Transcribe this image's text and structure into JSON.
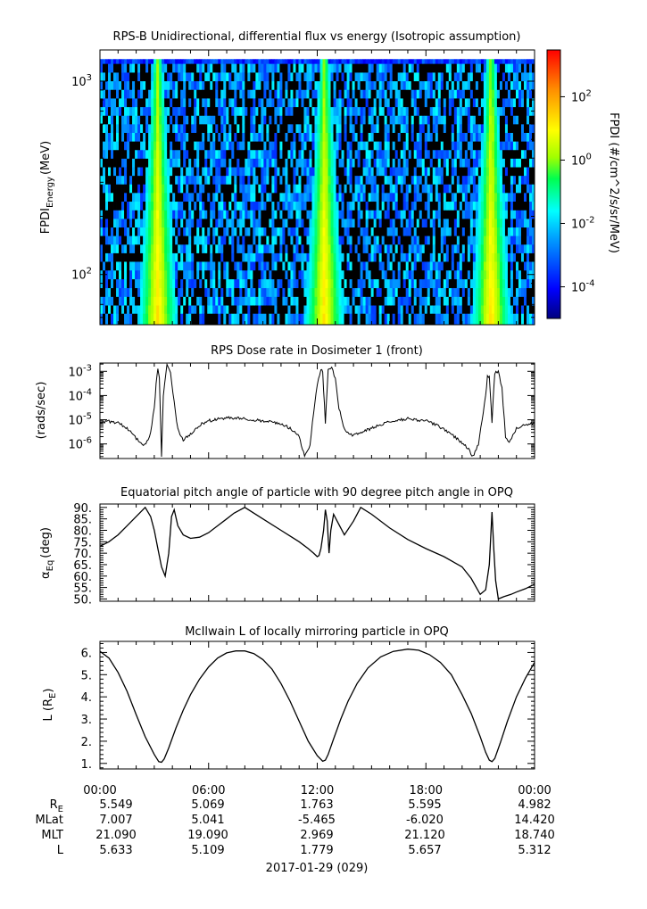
{
  "chart_data": [
    {
      "type": "heatmap",
      "title": "RPS-B  Unidirectional, differential flux vs energy (Isotropic assumption)",
      "ylabel_main": "FPDI",
      "ylabel_sub": "Energy",
      "ylabel_unit": "(MeV)",
      "y_scale": "log",
      "ylim": [
        55,
        1450
      ],
      "y_tick_labels": [
        {
          "value": 1000,
          "base": "10",
          "exp": "3"
        },
        {
          "value": 100,
          "base": "10",
          "exp": "2"
        }
      ],
      "energy_bins": [
        60,
        66,
        73,
        81,
        90,
        100,
        111,
        123,
        136,
        151,
        167,
        185,
        205,
        227,
        252,
        279,
        309,
        342,
        379,
        420,
        465,
        515,
        571,
        632,
        700,
        776,
        860,
        953,
        1056,
        1170,
        1300
      ],
      "colorbar": {
        "label": "FPDI (#/cm^2/s/sr/MeV)",
        "scale": "log",
        "range": [
          1e-05,
          3000
        ],
        "tick_labels": [
          {
            "value": 100,
            "base": "10",
            "exp": "2"
          },
          {
            "value": 1,
            "base": "10",
            "exp": "0"
          },
          {
            "value": 0.01,
            "base": "10",
            "exp": "-2"
          },
          {
            "value": 0.0001,
            "base": "10",
            "exp": "-4"
          }
        ]
      },
      "peaks_hours": [
        3.2,
        12.4,
        21.6
      ]
    },
    {
      "type": "line",
      "title": "RPS  Dose rate in Dosimeter 1 (front)",
      "ylabel": "(rads/sec)",
      "y_scale": "log",
      "ylim": [
        2.5e-07,
        0.0022
      ],
      "y_tick_labels": [
        {
          "value": 0.001,
          "base": "10",
          "exp": "-3"
        },
        {
          "value": 0.0001,
          "base": "10",
          "exp": "-4"
        },
        {
          "value": 1e-05,
          "base": "10",
          "exp": "-5"
        },
        {
          "value": 1e-06,
          "base": "10",
          "exp": "-6"
        }
      ],
      "x": [
        0,
        0.5,
        1,
        1.5,
        2,
        2.2,
        2.4,
        2.6,
        2.8,
        3.0,
        3.1,
        3.2,
        3.28,
        3.4,
        3.5,
        3.7,
        3.9,
        4.1,
        4.3,
        4.6,
        5,
        5.5,
        6,
        7,
        8,
        9,
        10,
        10.5,
        11,
        11.3,
        11.6,
        11.8,
        12.0,
        12.2,
        12.3,
        12.45,
        12.6,
        12.8,
        13.0,
        13.2,
        13.5,
        14,
        15,
        16,
        17,
        18,
        18.5,
        19,
        19.5,
        20,
        20.3,
        20.6,
        20.9,
        21.1,
        21.3,
        21.4,
        21.5,
        21.65,
        21.8,
        22.0,
        22.2,
        22.4,
        22.6,
        22.8,
        23,
        23.5,
        24
      ],
      "y": [
        7e-06,
        8.5e-06,
        7.5e-06,
        4.5e-06,
        1.7e-06,
        1.2e-06,
        9e-07,
        1.2e-06,
        3e-06,
        3e-05,
        0.0003,
        0.0012,
        0.0006,
        3e-07,
        0.0001,
        0.0018,
        0.0008,
        5e-05,
        4e-06,
        1.5e-06,
        2.5e-06,
        6e-06,
        9e-06,
        1.2e-05,
        1.1e-05,
        9e-06,
        7e-06,
        4.5e-06,
        2e-06,
        3e-07,
        9e-07,
        2e-05,
        0.0003,
        0.0013,
        0.0009,
        8e-06,
        0.0011,
        0.0015,
        0.0005,
        3e-05,
        4e-06,
        2.2e-06,
        4.5e-06,
        8.5e-06,
        1.1e-05,
        9e-06,
        6.5e-06,
        4e-06,
        2.2e-06,
        1.1e-06,
        7e-07,
        3e-07,
        1e-06,
        1e-05,
        0.0001,
        0.0006,
        0.0007,
        8e-06,
        0.0008,
        0.0011,
        0.0002,
        2e-06,
        1.2e-06,
        2.2e-06,
        4.5e-06,
        6.5e-06,
        7.5e-06
      ]
    },
    {
      "type": "line",
      "title": "Equatorial pitch angle of particle with 90 degree pitch angle in OPQ",
      "ylabel_main": "α",
      "ylabel_sub": "Eq",
      "ylabel_unit": "(deg)",
      "ylim": [
        49,
        91.5
      ],
      "y_ticks": [
        50,
        55,
        60,
        65,
        70,
        75,
        80,
        85,
        90
      ],
      "y_tick_labels": [
        "50.",
        "55.",
        "60.",
        "65.",
        "70.",
        "75.",
        "80.",
        "85.",
        "90."
      ],
      "x": [
        0,
        0.5,
        1,
        1.5,
        2.0,
        2.5,
        2.8,
        3.0,
        3.2,
        3.4,
        3.6,
        3.8,
        3.95,
        4.1,
        4.3,
        4.6,
        5,
        5.5,
        6,
        6.5,
        7,
        7.4,
        8,
        9,
        10,
        10.5,
        11,
        11.5,
        11.8,
        12.0,
        12.1,
        12.2,
        12.35,
        12.45,
        12.55,
        12.65,
        12.75,
        12.9,
        13.1,
        13.5,
        14,
        14.4,
        15,
        16,
        17,
        18,
        19,
        20,
        20.5,
        21.0,
        21.3,
        21.5,
        21.65,
        21.75,
        21.85,
        22.0,
        22.3,
        22.7,
        23,
        23.5,
        24
      ],
      "y": [
        73,
        75,
        78,
        82,
        86,
        90,
        86,
        80,
        72,
        64,
        60,
        70,
        86,
        89,
        82,
        78,
        76.5,
        77,
        79,
        82,
        85,
        87.5,
        90,
        85,
        80,
        77.5,
        75,
        72,
        70,
        68.5,
        69,
        72,
        80,
        89,
        84,
        70,
        80,
        87,
        84,
        78,
        84,
        90,
        87,
        81,
        76,
        72,
        68.5,
        64,
        59,
        52,
        54,
        65,
        88,
        72,
        58,
        50,
        51,
        52,
        53,
        54.5,
        56.5
      ]
    },
    {
      "type": "line",
      "title": "McIlwain L of locally mirroring particle in OPQ",
      "ylabel_main": "L (R",
      "ylabel_sub": "E",
      "ylabel_unit": ")",
      "ylim": [
        0.75,
        6.5
      ],
      "y_ticks": [
        1,
        2,
        3,
        4,
        5,
        6
      ],
      "y_tick_labels": [
        "1.",
        "2.",
        "3.",
        "4.",
        "5.",
        "6."
      ],
      "x": [
        0,
        0.5,
        1,
        1.5,
        2,
        2.5,
        3,
        3.25,
        3.4,
        3.55,
        3.8,
        4.2,
        4.6,
        5,
        5.5,
        6,
        6.5,
        7,
        7.5,
        8,
        8.5,
        9,
        9.5,
        10,
        10.5,
        11,
        11.5,
        12,
        12.3,
        12.45,
        12.6,
        12.9,
        13.3,
        13.7,
        14.2,
        14.8,
        15.5,
        16.2,
        17,
        17.6,
        18.2,
        18.8,
        19.4,
        20,
        20.5,
        21,
        21.3,
        21.5,
        21.65,
        21.8,
        22.1,
        22.5,
        23,
        23.5,
        24
      ],
      "y": [
        6.05,
        5.75,
        5.1,
        4.25,
        3.2,
        2.2,
        1.4,
        1.08,
        1.05,
        1.2,
        1.7,
        2.6,
        3.4,
        4.1,
        4.8,
        5.35,
        5.75,
        5.98,
        6.07,
        6.07,
        5.95,
        5.68,
        5.25,
        4.6,
        3.8,
        2.9,
        2.0,
        1.35,
        1.1,
        1.15,
        1.4,
        2.1,
        3.0,
        3.8,
        4.6,
        5.3,
        5.8,
        6.05,
        6.15,
        6.1,
        5.9,
        5.55,
        5.0,
        4.1,
        3.25,
        2.2,
        1.5,
        1.15,
        1.08,
        1.22,
        1.9,
        2.9,
        4.0,
        4.85,
        5.55
      ]
    }
  ],
  "x_axis": {
    "range_hours": [
      0,
      24
    ],
    "time_labels": [
      {
        "hour": 0,
        "text": "00:00"
      },
      {
        "hour": 6,
        "text": "06:00"
      },
      {
        "hour": 12,
        "text": "12:00"
      },
      {
        "hour": 18,
        "text": "18:00"
      },
      {
        "hour": 24,
        "text": "00:00"
      }
    ],
    "date_label": "2017-01-29 (029)"
  },
  "ephemeris": {
    "rows": [
      {
        "label": "R",
        "label_sub": "E",
        "values": [
          "5.549",
          "5.069",
          "1.763",
          "5.595",
          "4.982"
        ]
      },
      {
        "label": "MLat",
        "label_sub": "",
        "values": [
          "7.007",
          "5.041",
          "-5.465",
          "-6.020",
          "14.420"
        ]
      },
      {
        "label": "MLT",
        "label_sub": "",
        "values": [
          "21.090",
          "19.090",
          "2.969",
          "21.120",
          "18.740"
        ]
      },
      {
        "label": "L",
        "label_sub": "",
        "values": [
          "5.633",
          "5.109",
          "1.779",
          "5.657",
          "5.312"
        ]
      }
    ]
  }
}
